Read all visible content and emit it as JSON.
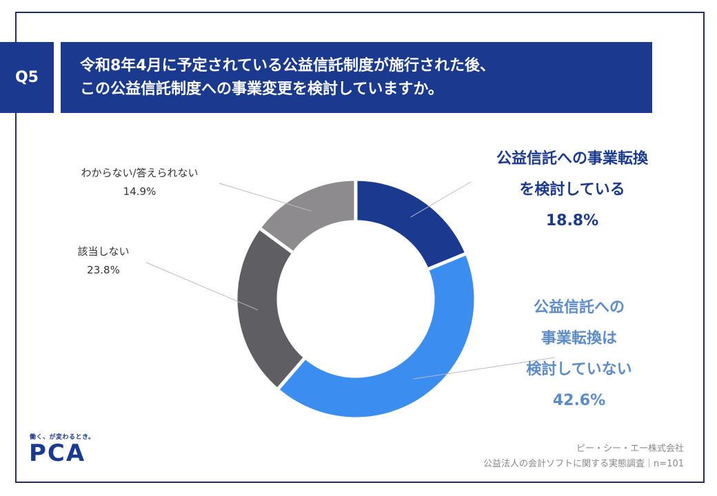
{
  "question": {
    "number": "Q5",
    "line1": "令和8年4月に予定されている公益信託制度が施行された後、",
    "line2": "この公益信託制度への事業変更を検討していますか。"
  },
  "chart_data": {
    "type": "pie",
    "donut": true,
    "title": "",
    "unit": "%",
    "slices": [
      {
        "label_lines": [
          "公益信託への事業転換",
          "を検討している"
        ],
        "value": 18.8,
        "value_label": "18.8%",
        "color": "#1a3a8f",
        "label_color": "#1a3a8f"
      },
      {
        "label_lines": [
          "公益信託への",
          "事業転換は",
          "検討していない"
        ],
        "value": 42.6,
        "value_label": "42.6%",
        "color": "#3b8ef0",
        "label_color": "#5b8cc9"
      },
      {
        "label_lines": [
          "該当しない"
        ],
        "value": 23.8,
        "value_label": "23.8%",
        "color": "#5f5e62",
        "label_color": "#333333"
      },
      {
        "label_lines": [
          "わからない/答えられない"
        ],
        "value": 14.9,
        "value_label": "14.9%",
        "color": "#8e8b8f",
        "label_color": "#333333"
      }
    ]
  },
  "brand": {
    "tagline": "働く、が変わるとき。",
    "logo": "PCA"
  },
  "source": {
    "line1": "ピー・シー・エー株式会社",
    "line2": "公益法人の会計ソフトに関する実態調査｜n=101"
  }
}
